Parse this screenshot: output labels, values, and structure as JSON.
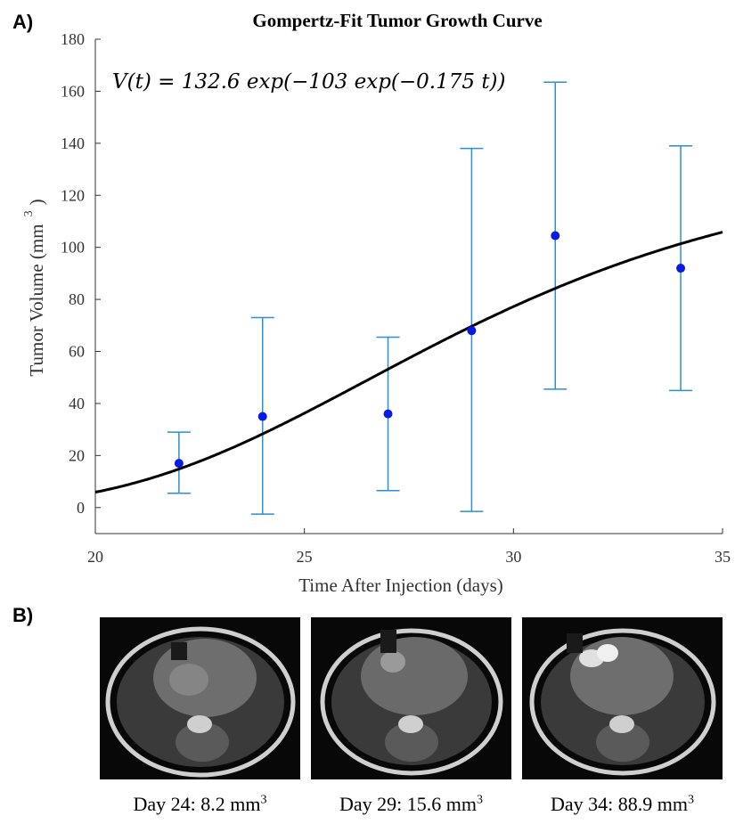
{
  "panels": {
    "a_label": "A)",
    "b_label": "B)"
  },
  "chart_data": {
    "type": "scatter",
    "title": "Gompertz-Fit Tumor Growth Curve",
    "xlabel": "Time After Injection (days)",
    "ylabel": "Tumor Volume (mm",
    "ylabel_sup": "3",
    "ylabel_close": ")",
    "xlim": [
      20,
      35
    ],
    "ylim": [
      -10,
      180
    ],
    "xticks": [
      20,
      25,
      30,
      35
    ],
    "yticks": [
      0,
      20,
      40,
      60,
      80,
      100,
      120,
      140,
      160,
      180
    ],
    "grid": false,
    "equation": "V(t) = 132.6 exp(−103 exp(−0.175 t))",
    "fit": {
      "a": 132.6,
      "b": 103,
      "c": 0.175
    },
    "points": [
      {
        "x": 22,
        "y": 17,
        "err_low": 5.5,
        "err_high": 29
      },
      {
        "x": 24,
        "y": 35,
        "err_low": -2.5,
        "err_high": 73
      },
      {
        "x": 27,
        "y": 36,
        "err_low": 6.5,
        "err_high": 65.5
      },
      {
        "x": 29,
        "y": 68,
        "err_low": -1.5,
        "err_high": 138
      },
      {
        "x": 31,
        "y": 104.5,
        "err_low": 45.5,
        "err_high": 163.5
      },
      {
        "x": 34,
        "y": 92,
        "err_low": 45,
        "err_high": 139
      }
    ],
    "colors": {
      "points": "#0a1ae6",
      "errorbars": "#2b8fd1",
      "curve": "#000000",
      "axis": "#333333"
    }
  },
  "mri_images": [
    {
      "caption_prefix": "Day 24: 8.2 mm",
      "caption_sup": "3"
    },
    {
      "caption_prefix": "Day 29: 15.6 mm",
      "caption_sup": "3"
    },
    {
      "caption_prefix": "Day 34: 88.9 mm",
      "caption_sup": "3"
    }
  ]
}
